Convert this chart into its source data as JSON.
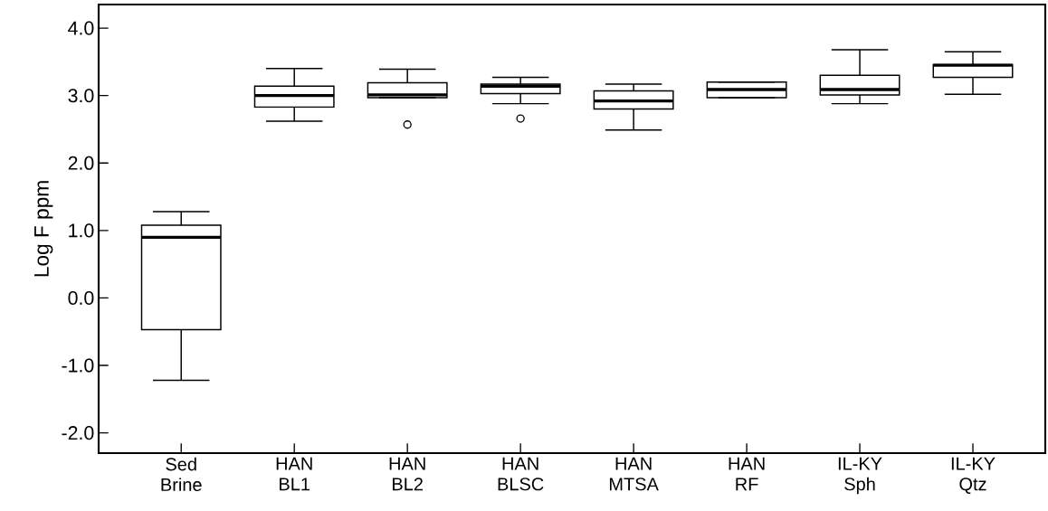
{
  "chart_data": {
    "type": "box",
    "ylabel": "Log F ppm",
    "categories": [
      "Sed Brine",
      "HAN BL1",
      "HAN BL2",
      "HAN BLSC",
      "HAN MTSA",
      "HAN RF",
      "IL-KY Sph",
      "IL-KY Qtz"
    ],
    "boxes": [
      {
        "low": -1.22,
        "q1": -0.47,
        "median": 0.9,
        "q3": 1.08,
        "high": 1.28
      },
      {
        "low": 2.62,
        "q1": 2.83,
        "median": 3.0,
        "q3": 3.14,
        "high": 3.4
      },
      {
        "low": 2.97,
        "q1": 2.97,
        "median": 3.01,
        "q3": 3.19,
        "high": 3.39,
        "outliers": [
          2.57
        ]
      },
      {
        "low": 2.88,
        "q1": 3.03,
        "median": 3.14,
        "q3": 3.17,
        "high": 3.27,
        "outliers": [
          2.66
        ]
      },
      {
        "low": 2.49,
        "q1": 2.8,
        "median": 2.92,
        "q3": 3.07,
        "high": 3.17
      },
      {
        "low": 2.97,
        "q1": 2.97,
        "median": 3.09,
        "q3": 3.2,
        "high": 3.2
      },
      {
        "low": 2.88,
        "q1": 3.01,
        "median": 3.09,
        "q3": 3.3,
        "high": 3.68
      },
      {
        "low": 3.02,
        "q1": 3.27,
        "median": 3.45,
        "q3": 3.46,
        "high": 3.65
      }
    ],
    "color": "#000000",
    "ylim": [
      -2.3,
      4.35
    ],
    "yticks": [
      {
        "value": -2,
        "label": "-2.0"
      },
      {
        "value": -1,
        "label": "-1.0"
      },
      {
        "value": 0,
        "label": "0.0"
      },
      {
        "value": 1,
        "label": "1.0"
      },
      {
        "value": 2,
        "label": "2.0"
      },
      {
        "value": 3,
        "label": "3.0"
      },
      {
        "value": 4,
        "label": "4.0"
      }
    ],
    "grid": false
  }
}
